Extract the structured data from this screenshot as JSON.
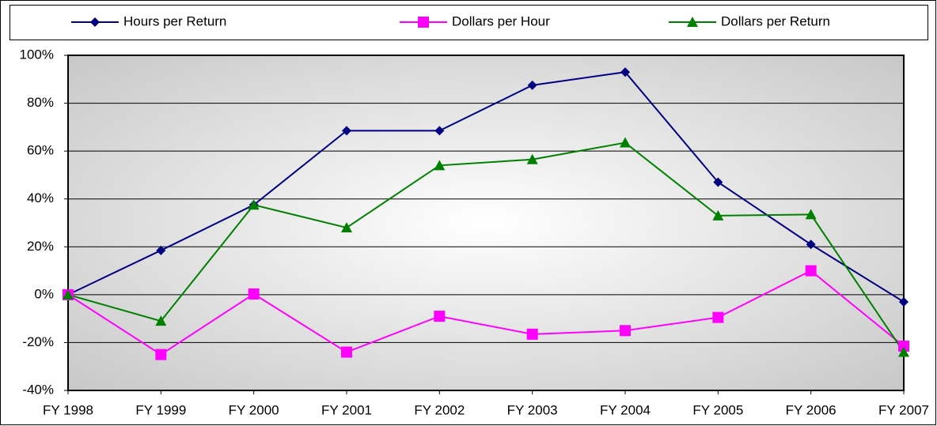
{
  "chart_data": {
    "type": "line",
    "categories": [
      "FY 1998",
      "FY 1999",
      "FY 2000",
      "FY 2001",
      "FY 2002",
      "FY 2003",
      "FY 2004",
      "FY 2005",
      "FY 2006",
      "FY 2007"
    ],
    "series": [
      {
        "name": "Hours per Return",
        "color": "#000080",
        "marker": "diamond",
        "values": [
          0,
          18.5,
          37.5,
          68.5,
          68.5,
          87.5,
          93,
          47,
          21,
          -3
        ]
      },
      {
        "name": "Dollars per Hour",
        "color": "#ff00ff",
        "marker": "square",
        "values": [
          0,
          -25,
          0.3,
          -24,
          -9,
          -16.5,
          -15,
          -9.5,
          10,
          -21.5
        ]
      },
      {
        "name": "Dollars per Return",
        "color": "#008000",
        "marker": "triangle",
        "values": [
          0,
          -11,
          37.5,
          28,
          54,
          56.5,
          63.5,
          33,
          33.5,
          -24
        ]
      }
    ],
    "ylim": [
      -40,
      100
    ],
    "yticks": [
      {
        "value": -40,
        "label": "-40%"
      },
      {
        "value": -20,
        "label": "-20%"
      },
      {
        "value": 0,
        "label": "0%"
      },
      {
        "value": 20,
        "label": "20%"
      },
      {
        "value": 40,
        "label": "40%"
      },
      {
        "value": 60,
        "label": "60%"
      },
      {
        "value": 80,
        "label": "80%"
      },
      {
        "value": 100,
        "label": "100%"
      }
    ],
    "grid": true,
    "legend": "top"
  }
}
